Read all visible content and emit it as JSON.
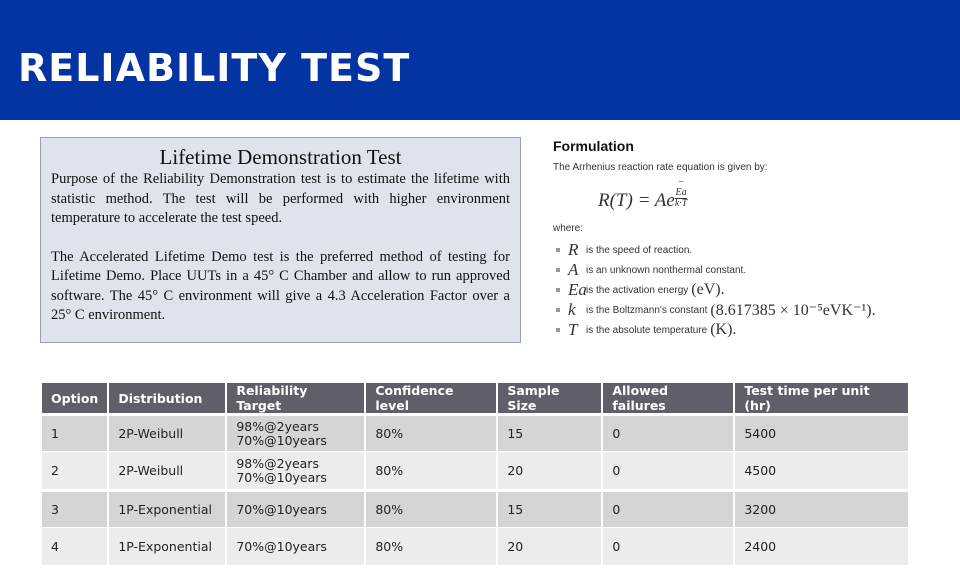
{
  "header": {
    "title": "RELIABILITY TEST",
    "color": "#0433a2"
  },
  "textbox": {
    "title": "Lifetime Demonstration Test",
    "para1": "Purpose of the Reliability Demonstration test is to estimate the lifetime with statistic method. The test will be performed with higher environment temperature to accelerate the test speed.",
    "para2": "The Accelerated Lifetime Demo test is the preferred method of testing for Lifetime Demo. Place UUTs in a 45° C Chamber and allow to run approved software. The 45° C environment will give a 4.3 Acceleration Factor over a 25° C environment."
  },
  "formulation": {
    "heading": "Formulation",
    "intro": "The Arrhenius reaction rate equation is given by:",
    "equation_lhs": "R(T) = Ae",
    "exp_num": "Ea",
    "exp_den": "k·T",
    "where": "where:",
    "items": [
      {
        "var": "R",
        "text": "is the speed of reaction.",
        "unit": ""
      },
      {
        "var": "A",
        "text": "is an unknown nonthermal constant.",
        "unit": ""
      },
      {
        "var": "Ea",
        "text": "is the activation energy",
        "unit": "(eV)."
      },
      {
        "var": "k",
        "text": "is the Boltzmann's constant",
        "unit": "(8.617385 × 10⁻⁵eVK⁻¹)."
      },
      {
        "var": "T",
        "text": "is the absolute temperature",
        "unit": "(K)."
      }
    ]
  },
  "table": {
    "headers": [
      "Option",
      "Distribution",
      "Reliability Target",
      "Confidence level",
      "Sample Size",
      "Allowed failures",
      "Test time per unit (hr)"
    ],
    "rows": [
      [
        "1",
        "2P-Weibull",
        "98%@2years\n70%@10years",
        "80%",
        "15",
        "0",
        "5400"
      ],
      [
        "2",
        "2P-Weibull",
        "98%@2years\n70%@10years",
        "80%",
        "20",
        "0",
        "4500"
      ],
      [
        "3",
        "1P-Exponential",
        "70%@10years",
        "80%",
        "15",
        "0",
        "3200"
      ],
      [
        "4",
        "1P-Exponential",
        "70%@10years",
        "80%",
        "20",
        "0",
        "2400"
      ]
    ]
  }
}
